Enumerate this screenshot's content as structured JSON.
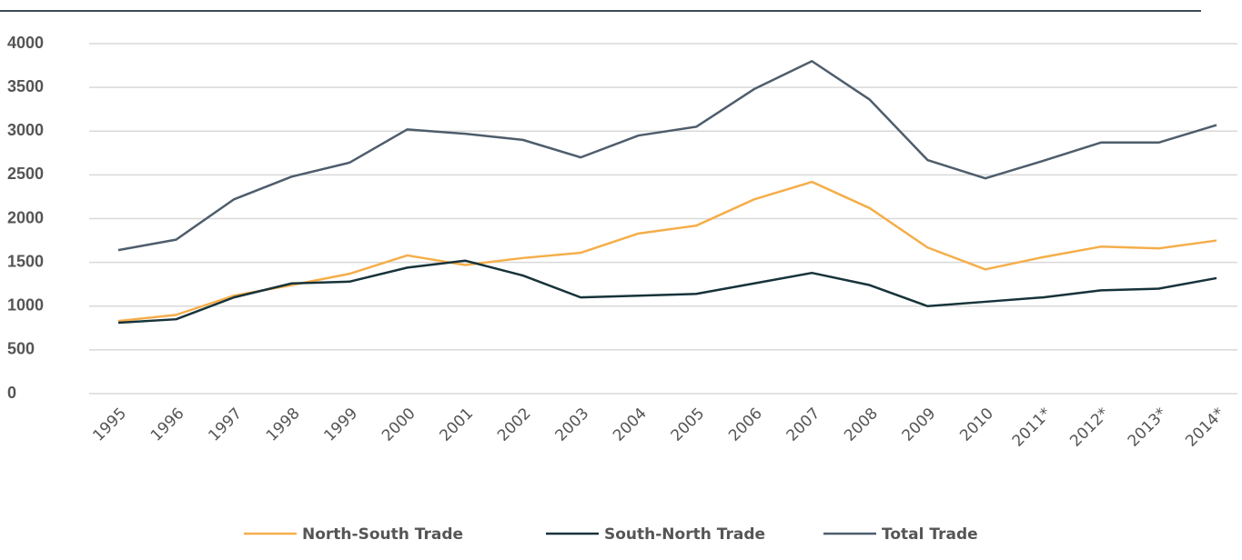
{
  "chart_data": {
    "type": "line",
    "categories": [
      "1995",
      "1996",
      "1997",
      "1998",
      "1999",
      "2000",
      "2001",
      "2002",
      "2003",
      "2004",
      "2005",
      "2006",
      "2007",
      "2008",
      "2009",
      "2010",
      "2011*",
      "2012*",
      "2013*",
      "2014*"
    ],
    "series": [
      {
        "name": "North-South Trade",
        "color": "#f5ae4a",
        "values": [
          830,
          900,
          1120,
          1240,
          1370,
          1580,
          1470,
          1550,
          1610,
          1830,
          1920,
          2220,
          2420,
          2120,
          1670,
          1420,
          1560,
          1680,
          1660,
          1750
        ]
      },
      {
        "name": "South-North Trade",
        "color": "#17333a",
        "values": [
          810,
          850,
          1100,
          1260,
          1280,
          1440,
          1520,
          1350,
          1100,
          1120,
          1140,
          1260,
          1380,
          1240,
          1000,
          1050,
          1100,
          1180,
          1200,
          1320
        ]
      },
      {
        "name": "Total Trade",
        "color": "#4e5d6c",
        "values": [
          1640,
          1760,
          2220,
          2480,
          2640,
          3020,
          2970,
          2900,
          2700,
          2950,
          3050,
          3480,
          3800,
          3360,
          2670,
          2460,
          2660,
          2870,
          2870,
          3070
        ]
      }
    ],
    "ylim": [
      0,
      4000
    ],
    "yticks": [
      0,
      500,
      1000,
      1500,
      2000,
      2500,
      3000,
      3500,
      4000
    ],
    "grid": true,
    "legend": "bottom"
  }
}
